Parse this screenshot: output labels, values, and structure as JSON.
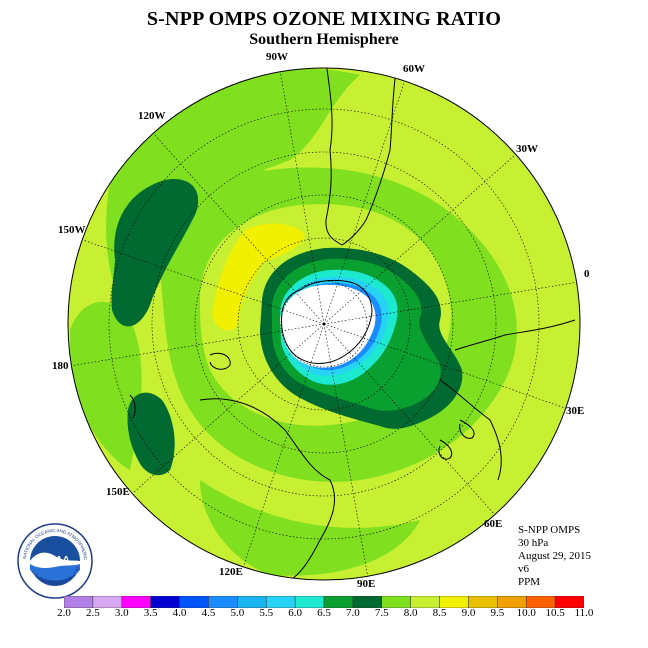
{
  "title": "S-NPP OMPS OZONE MIXING RATIO",
  "subtitle": "Southern Hemisphere",
  "info": {
    "instrument": "S-NPP OMPS",
    "level": "30 hPa",
    "date": "August 29, 2015",
    "version": "v6",
    "units": "PPM"
  },
  "longitude_labels": [
    "90W",
    "60W",
    "120W",
    "30W",
    "150W",
    "0",
    "180",
    "30E",
    "150E",
    "60E",
    "120E",
    "90E"
  ],
  "colorbar": {
    "labels": [
      "2.0",
      "2.5",
      "3.0",
      "3.5",
      "4.0",
      "4.5",
      "5.0",
      "5.5",
      "6.0",
      "6.5",
      "7.0",
      "7.5",
      "8.0",
      "8.5",
      "9.0",
      "9.5",
      "10.0",
      "10.5",
      "11.0"
    ],
    "colors": [
      "#b27fe6",
      "#d8a8f0",
      "#ff00ff",
      "#0000d0",
      "#0055ff",
      "#1a8cff",
      "#19b3f0",
      "#27d3f5",
      "#1de8d0",
      "#0aa030",
      "#006a30",
      "#80e020",
      "#c8f032",
      "#f0f000",
      "#e8c000",
      "#f0a000",
      "#ff6000",
      "#ff0000",
      "#8b5a3c"
    ]
  },
  "logo": {
    "text": "NOAA",
    "ring_text": "NATIONAL OCEANIC AND ATMOSPHERIC ADMINISTRATION",
    "ring_text_bottom": "U.S. DEPARTMENT OF COMMERCE"
  },
  "colors": {
    "background_field": "#c8f032",
    "mid_field": "#80e020",
    "vortex_dark": "#006a30",
    "vortex_mid": "#0aa030",
    "low_cyan": "#1de8d0",
    "low_blue": "#1a8cff",
    "high_yellow": "#f0f000"
  }
}
